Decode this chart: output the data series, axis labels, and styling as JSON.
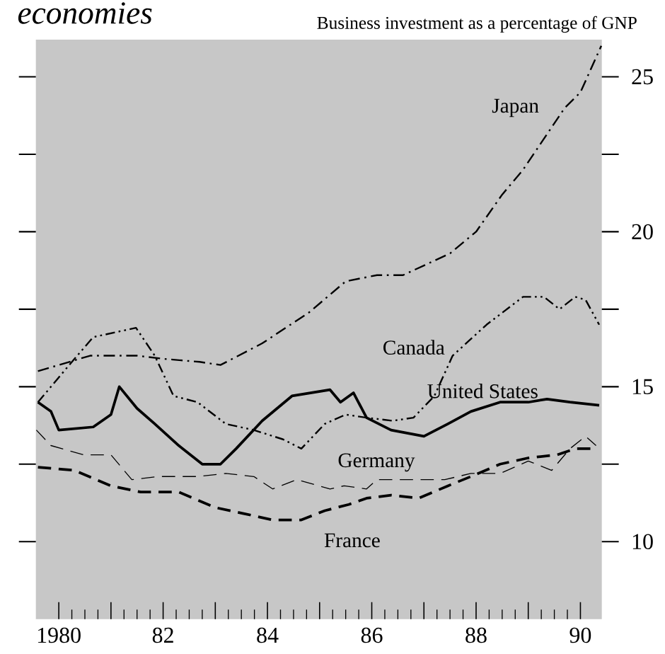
{
  "chart_data": {
    "type": "line",
    "title": "economies",
    "subtitle": "Business investment as a percentage of GNP",
    "xlim": [
      1979.56,
      1990.41
    ],
    "ylim": [
      7.5,
      26.2
    ],
    "xticks": [
      {
        "value": 1980,
        "label": "1980"
      },
      {
        "value": 1981,
        "label": null
      },
      {
        "value": 1982,
        "label": "82"
      },
      {
        "value": 1983,
        "label": null
      },
      {
        "value": 1984,
        "label": "84"
      },
      {
        "value": 1985,
        "label": null
      },
      {
        "value": 1986,
        "label": "86"
      },
      {
        "value": 1987,
        "label": null
      },
      {
        "value": 1988,
        "label": "88"
      },
      {
        "value": 1989,
        "label": null
      },
      {
        "value": 1990,
        "label": "90"
      }
    ],
    "yticks": [
      10,
      {
        "value": 12.5,
        "label": null
      },
      15,
      {
        "value": 17.5,
        "label": null
      },
      20,
      {
        "value": 22.5,
        "label": null
      },
      25
    ],
    "grid": false,
    "legend": false,
    "marker": "none",
    "series": [
      {
        "name": "Japan",
        "color": "#000000",
        "line_style": "dashdot",
        "x": [
          1979.6,
          1980.6,
          1981.5,
          1982.0,
          1982.7,
          1983.1,
          1983.9,
          1984.8,
          1985.5,
          1986.1,
          1986.6,
          1987.5,
          1988.0,
          1988.5,
          1988.9,
          1989.3,
          1989.7,
          1990.0,
          1990.4
        ],
        "values": [
          15.5,
          16.0,
          16.0,
          15.9,
          15.8,
          15.7,
          16.4,
          17.4,
          18.4,
          18.6,
          18.6,
          19.3,
          20.0,
          21.2,
          22.0,
          23.0,
          24.0,
          24.5,
          26.0
        ]
      },
      {
        "name": "Canada",
        "color": "#000000",
        "line_style": "dashdotdot",
        "x": [
          1979.6,
          1980.2,
          1980.66,
          1981.48,
          1981.84,
          1982.2,
          1982.66,
          1983.2,
          1983.74,
          1984.3,
          1984.65,
          1985.1,
          1985.5,
          1985.9,
          1986.4,
          1986.8,
          1987.2,
          1987.55,
          1988.2,
          1988.9,
          1989.3,
          1989.6,
          1989.9,
          1990.1,
          1990.36
        ],
        "values": [
          14.5,
          15.7,
          16.6,
          16.9,
          16.0,
          14.7,
          14.5,
          13.8,
          13.6,
          13.3,
          13.0,
          13.8,
          14.1,
          14.0,
          13.9,
          14.0,
          14.7,
          16.0,
          17.0,
          17.9,
          17.9,
          17.5,
          17.9,
          17.8,
          17.0
        ]
      },
      {
        "name": "United States",
        "color": "#000000",
        "line_style": "solid",
        "x": [
          1979.6,
          1979.85,
          1980.0,
          1980.66,
          1981.0,
          1981.16,
          1981.5,
          1981.84,
          1982.3,
          1982.75,
          1983.1,
          1983.4,
          1983.9,
          1984.47,
          1985.2,
          1985.4,
          1985.65,
          1985.9,
          1986.37,
          1987.0,
          1987.46,
          1987.9,
          1988.46,
          1989.0,
          1989.36,
          1989.8,
          1990.36
        ],
        "values": [
          14.5,
          14.2,
          13.6,
          13.7,
          14.1,
          15.0,
          14.3,
          13.8,
          13.1,
          12.5,
          12.5,
          13.0,
          13.9,
          14.7,
          14.9,
          14.5,
          14.8,
          14.0,
          13.6,
          13.4,
          13.8,
          14.2,
          14.5,
          14.5,
          14.6,
          14.5,
          14.4
        ]
      },
      {
        "name": "Germany",
        "color": "#000000",
        "line_style": "dashed",
        "x": [
          1979.57,
          1979.85,
          1980.48,
          1981.0,
          1981.4,
          1981.9,
          1982.66,
          1983.2,
          1983.74,
          1984.1,
          1984.56,
          1985.2,
          1985.47,
          1985.9,
          1986.1,
          1986.65,
          1987.4,
          1987.9,
          1988.46,
          1989.0,
          1989.45,
          1989.8,
          1990.1,
          1990.3
        ],
        "values": [
          13.6,
          13.1,
          12.8,
          12.8,
          12.0,
          12.1,
          12.1,
          12.2,
          12.1,
          11.7,
          12.0,
          11.7,
          11.8,
          11.7,
          12.0,
          12.0,
          12.0,
          12.2,
          12.2,
          12.6,
          12.3,
          13.0,
          13.4,
          13.1
        ]
      },
      {
        "name": "France",
        "color": "#000000",
        "line_style": "dashed",
        "x": [
          1979.6,
          1980.3,
          1981.0,
          1981.57,
          1982.3,
          1983.0,
          1983.56,
          1984.1,
          1984.65,
          1985.1,
          1985.56,
          1985.9,
          1986.37,
          1986.9,
          1987.46,
          1987.9,
          1988.46,
          1989.0,
          1989.55,
          1989.9,
          1990.3
        ],
        "values": [
          12.4,
          12.3,
          11.8,
          11.6,
          11.6,
          11.1,
          10.9,
          10.7,
          10.7,
          11.0,
          11.2,
          11.4,
          11.5,
          11.4,
          11.8,
          12.1,
          12.5,
          12.7,
          12.8,
          13.0,
          13.0
        ]
      }
    ]
  }
}
